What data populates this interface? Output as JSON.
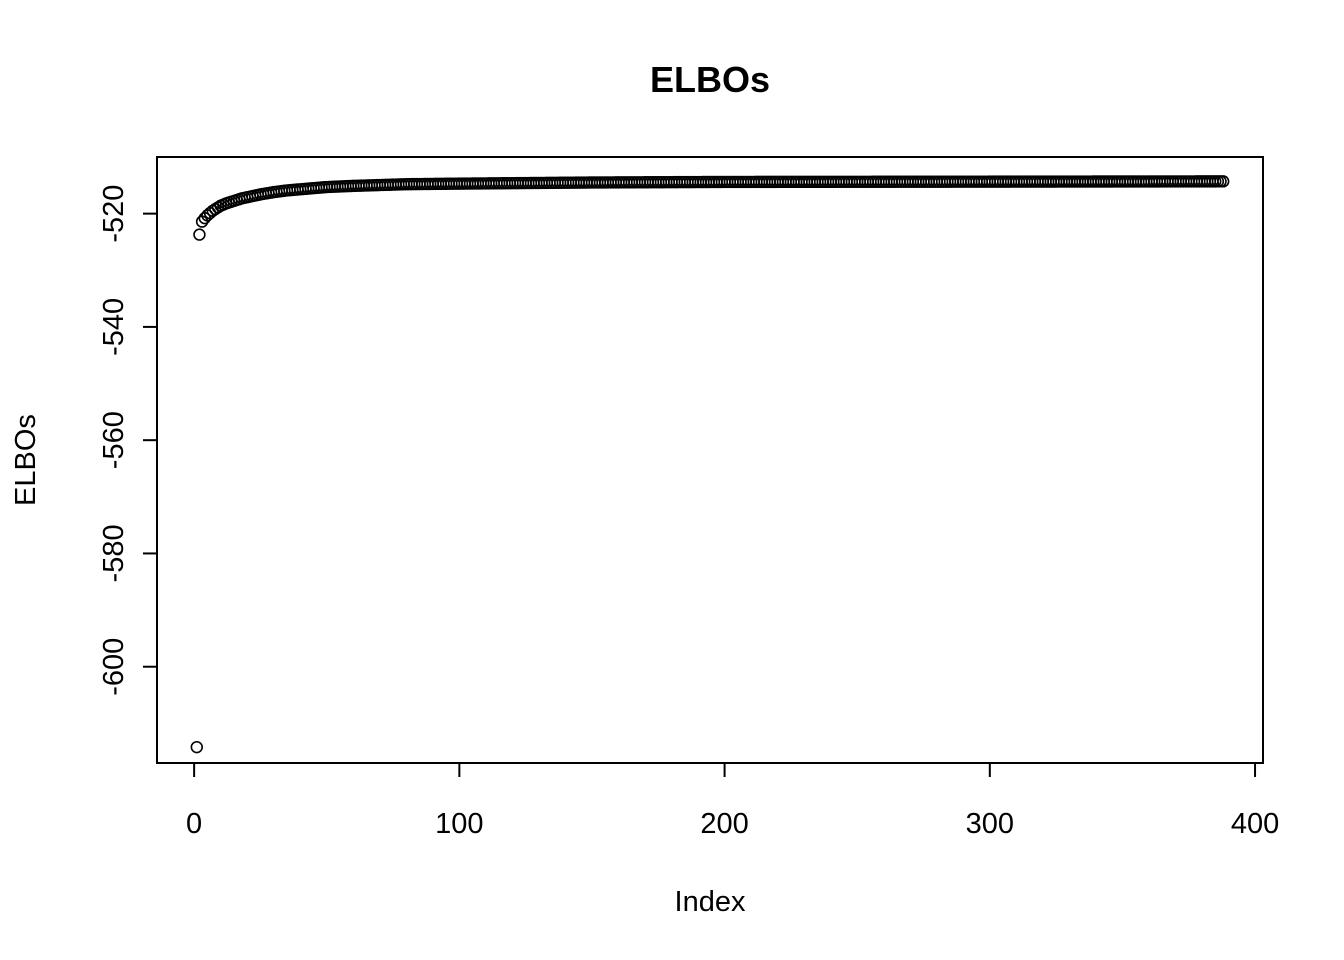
{
  "chart_data": {
    "type": "scatter",
    "title": "ELBOs",
    "xlabel": "Index",
    "ylabel": "ELBOs",
    "xticks": [
      0,
      100,
      200,
      300,
      400
    ],
    "yticks": [
      -600,
      -580,
      -560,
      -540,
      -520
    ],
    "xlim": [
      -14,
      403
    ],
    "ylim": [
      -617,
      -510
    ],
    "point_style": "open-circle",
    "series": [
      {
        "n_points": 388,
        "y_first": -614.2,
        "y_final": -514.3,
        "y_samples": [
          [
            1,
            -614.2
          ],
          [
            2,
            -523.7
          ],
          [
            3,
            -521.4
          ],
          [
            4,
            -520.8
          ],
          [
            5,
            -520.3
          ],
          [
            6,
            -519.9
          ],
          [
            7,
            -519.5
          ],
          [
            8,
            -519.2
          ],
          [
            9,
            -518.9
          ],
          [
            10,
            -518.6
          ],
          [
            12,
            -518.2
          ],
          [
            14,
            -517.9
          ],
          [
            16,
            -517.6
          ],
          [
            18,
            -517.3
          ],
          [
            20,
            -517.1
          ],
          [
            25,
            -516.6
          ],
          [
            30,
            -516.2
          ],
          [
            35,
            -515.9
          ],
          [
            40,
            -515.7
          ],
          [
            50,
            -515.3
          ],
          [
            60,
            -515.1
          ],
          [
            80,
            -514.8
          ],
          [
            100,
            -514.7
          ],
          [
            150,
            -514.5
          ],
          [
            200,
            -514.4
          ],
          [
            300,
            -514.35
          ],
          [
            388,
            -514.3
          ]
        ]
      }
    ]
  }
}
